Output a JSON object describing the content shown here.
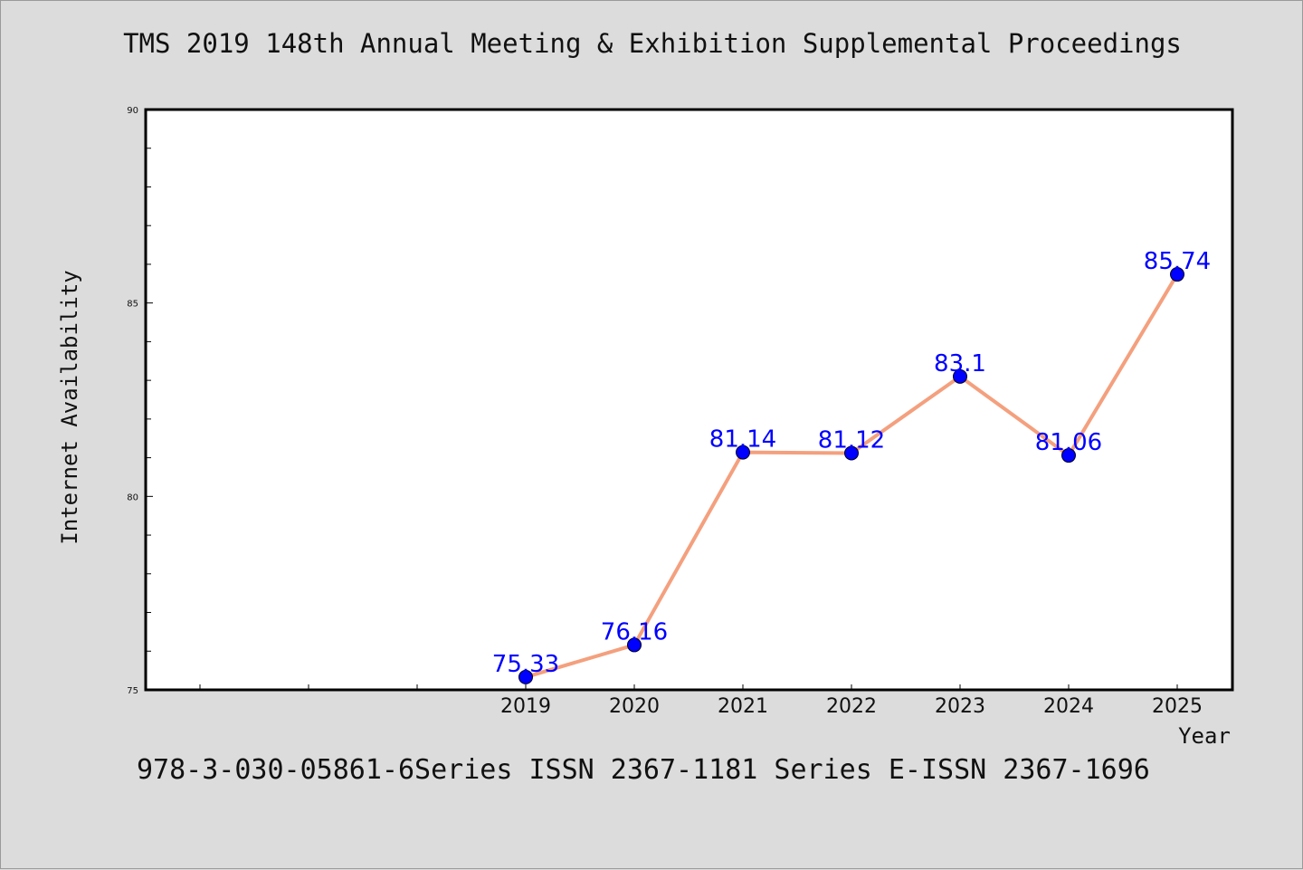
{
  "title": "TMS 2019 148th Annual Meeting & Exhibition Supplemental Proceedings",
  "footer": "978-3-030-05861-6Series ISSN 2367-1181 Series E-ISSN 2367-1696",
  "chart_data": {
    "type": "line",
    "title": "TMS 2019 148th Annual Meeting & Exhibition Supplemental Proceedings",
    "xlabel": "Year",
    "ylabel": "Internet Availability",
    "x": [
      "2019",
      "2020",
      "2021",
      "2022",
      "2023",
      "2024",
      "2025"
    ],
    "series": [
      {
        "values": [
          75.33,
          76.16,
          81.14,
          81.12,
          83.1,
          81.06,
          85.74
        ],
        "labels": [
          "75.33",
          "76.16",
          "81.14",
          "81.12",
          "83.1",
          "81.06",
          "85.74"
        ],
        "line_color": "#f4a07e",
        "marker_color": "#0000ff"
      }
    ],
    "ylim": [
      75,
      90
    ],
    "yticks": [
      "75",
      "80",
      "85",
      "90"
    ],
    "grid": false,
    "legend": "none"
  }
}
